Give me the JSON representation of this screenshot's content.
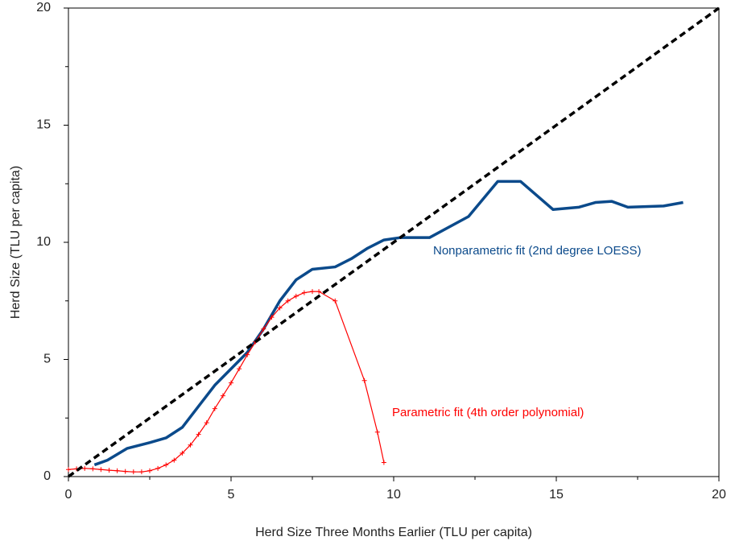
{
  "chart_data": {
    "type": "line",
    "xlabel": "Herd Size Three Months Earlier (TLU per capita)",
    "ylabel": "Herd Size (TLU per capita)",
    "xlim": [
      0,
      20
    ],
    "ylim": [
      0,
      20
    ],
    "xticks": [
      0,
      5,
      10,
      15,
      20
    ],
    "yticks": [
      0,
      5,
      10,
      15,
      20
    ],
    "xminorticks": [
      2.5,
      7.5,
      12.5,
      17.5
    ],
    "yminorticks": [
      2.5,
      7.5,
      12.5,
      17.5
    ],
    "grid": false,
    "series": [
      {
        "name": "Nonparametric fit (2nd degree LOESS)",
        "color": "#0b4a8b",
        "dashed": false,
        "markers": false,
        "x": [
          0.8,
          1.2,
          1.8,
          2.5,
          3.0,
          3.5,
          4.0,
          4.5,
          5.0,
          5.5,
          6.0,
          6.5,
          7.0,
          7.5,
          8.2,
          8.7,
          9.2,
          9.7,
          10.2,
          11.1,
          12.3,
          13.2,
          13.9,
          14.9,
          15.7,
          16.2,
          16.7,
          17.2,
          18.3,
          18.9
        ],
        "values": [
          0.5,
          0.7,
          1.2,
          1.45,
          1.65,
          2.1,
          3.0,
          3.9,
          4.6,
          5.3,
          6.3,
          7.5,
          8.4,
          8.85,
          8.95,
          9.3,
          9.75,
          10.1,
          10.2,
          10.2,
          11.1,
          12.6,
          12.6,
          11.4,
          11.5,
          11.7,
          11.75,
          11.5,
          11.55,
          11.7
        ]
      },
      {
        "name": "Parametric fit (4th order polynomial)",
        "color": "#ff0000",
        "dashed": false,
        "markers": true,
        "x": [
          0,
          0.25,
          0.5,
          0.75,
          1,
          1.25,
          1.5,
          1.75,
          2,
          2.25,
          2.5,
          2.75,
          3,
          3.25,
          3.5,
          3.75,
          4,
          4.25,
          4.5,
          4.75,
          5,
          5.25,
          5.5,
          5.75,
          6,
          6.25,
          6.5,
          6.75,
          7,
          7.25,
          7.5,
          7.7,
          8.2,
          9.1,
          9.5,
          9.7
        ],
        "values": [
          0.3,
          0.33,
          0.35,
          0.33,
          0.3,
          0.27,
          0.25,
          0.22,
          0.2,
          0.2,
          0.25,
          0.35,
          0.5,
          0.7,
          1.0,
          1.35,
          1.8,
          2.3,
          2.9,
          3.45,
          4.0,
          4.6,
          5.2,
          5.75,
          6.3,
          6.8,
          7.2,
          7.5,
          7.7,
          7.85,
          7.9,
          7.9,
          7.5,
          4.1,
          1.9,
          0.6
        ]
      },
      {
        "color": "#000000",
        "dashed": true,
        "markers": false,
        "x": [
          0,
          20
        ],
        "values": [
          0,
          20
        ]
      }
    ]
  }
}
